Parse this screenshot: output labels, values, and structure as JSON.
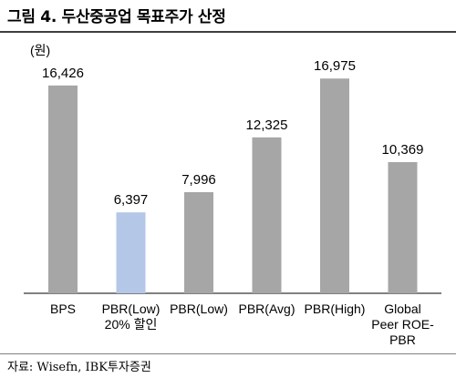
{
  "title": "그림 4. 두산중공업 목표주가 산정",
  "source": "자료: Wisefn, IBK투자증권",
  "chart_data": {
    "type": "bar",
    "unit_label": "(원)",
    "categories": [
      [
        "BPS"
      ],
      [
        "PBR(Low)",
        "20% 할인"
      ],
      [
        "PBR(Low)"
      ],
      [
        "PBR(Avg)"
      ],
      [
        "PBR(High)"
      ],
      [
        "Global",
        "Peer ROE-",
        "PBR"
      ]
    ],
    "values": [
      16426,
      6397,
      7996,
      12325,
      16975,
      10369
    ],
    "value_labels": [
      "16,426",
      "6,397",
      "7,996",
      "12,325",
      "16,975",
      "10,369"
    ],
    "bar_colors": [
      "#a6a6a6",
      "#b4c7e7",
      "#a6a6a6",
      "#a6a6a6",
      "#a6a6a6",
      "#a6a6a6"
    ],
    "ylim": [
      0,
      18000
    ],
    "grid": false,
    "legend": "none"
  }
}
